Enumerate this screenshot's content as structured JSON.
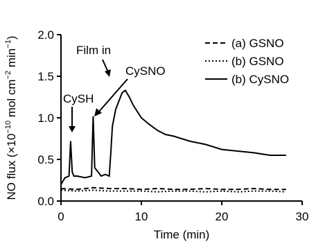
{
  "chart_data": {
    "type": "line",
    "title": "",
    "xlabel": "Time (min)",
    "ylabel_parts": [
      "NO flux (×10",
      "−10",
      " mol cm",
      "−2",
      " min",
      "−1",
      ")"
    ],
    "xlim": [
      0,
      30
    ],
    "ylim": [
      0.0,
      2.0
    ],
    "x_ticks": [
      0,
      10,
      20,
      30
    ],
    "x_tick_labels": [
      "0",
      "10",
      "20",
      "30"
    ],
    "y_ticks": [
      0.0,
      0.5,
      1.0,
      1.5,
      2.0
    ],
    "y_tick_labels": [
      "0.0",
      "0.5",
      "1.0",
      "1.5",
      "2.0"
    ],
    "grid": false,
    "legend_position": "top-right",
    "series": [
      {
        "key": "a_gsno",
        "name": "(a) GSNO",
        "line_style": "dashed",
        "x": [
          0.0,
          2.0,
          4.0,
          6.0,
          8.0,
          10.0,
          12.0,
          14.0,
          16.0,
          18.0,
          20.0,
          22.0,
          24.0,
          26.0,
          28.0
        ],
        "y": [
          0.15,
          0.14,
          0.16,
          0.15,
          0.15,
          0.14,
          0.15,
          0.14,
          0.14,
          0.15,
          0.14,
          0.14,
          0.15,
          0.14,
          0.14
        ]
      },
      {
        "key": "b_gsno",
        "name": "(b) GSNO",
        "line_style": "dotted",
        "x": [
          0.0,
          2.0,
          4.0,
          6.0,
          8.0,
          10.0,
          12.0,
          14.0,
          16.0,
          18.0,
          20.0,
          22.0,
          24.0,
          26.0,
          28.0
        ],
        "y": [
          0.13,
          0.12,
          0.13,
          0.12,
          0.12,
          0.12,
          0.11,
          0.12,
          0.12,
          0.11,
          0.12,
          0.11,
          0.12,
          0.12,
          0.11
        ]
      },
      {
        "key": "b_cysno",
        "name": "(b) CySNO",
        "line_style": "solid",
        "x": [
          0.0,
          0.5,
          1.0,
          1.2,
          1.4,
          1.6,
          2.0,
          3.0,
          3.8,
          4.0,
          4.2,
          4.6,
          5.0,
          5.5,
          6.0,
          6.2,
          6.4,
          6.8,
          7.2,
          7.6,
          8.0,
          8.5,
          9.0,
          10.0,
          11.0,
          12.0,
          13.0,
          14.0,
          15.0,
          16.0,
          18.0,
          20.0,
          22.0,
          24.0,
          26.0,
          28.0
        ],
        "y": [
          0.2,
          0.28,
          0.3,
          0.72,
          0.35,
          0.3,
          0.3,
          0.28,
          0.3,
          1.02,
          0.4,
          0.35,
          0.3,
          0.32,
          0.3,
          0.58,
          0.9,
          1.1,
          1.2,
          1.3,
          1.33,
          1.25,
          1.15,
          1.0,
          0.92,
          0.85,
          0.8,
          0.78,
          0.75,
          0.72,
          0.68,
          0.62,
          0.6,
          0.58,
          0.55,
          0.55
        ]
      }
    ],
    "annotations": [
      {
        "text": "CySH",
        "target_x": 1.2,
        "target_y": 0.75
      },
      {
        "text": "Film in",
        "target_x": 6.2,
        "target_y": 1.62
      },
      {
        "text": "CySNO",
        "target_x": 4.2,
        "target_y": 1.05
      }
    ]
  }
}
